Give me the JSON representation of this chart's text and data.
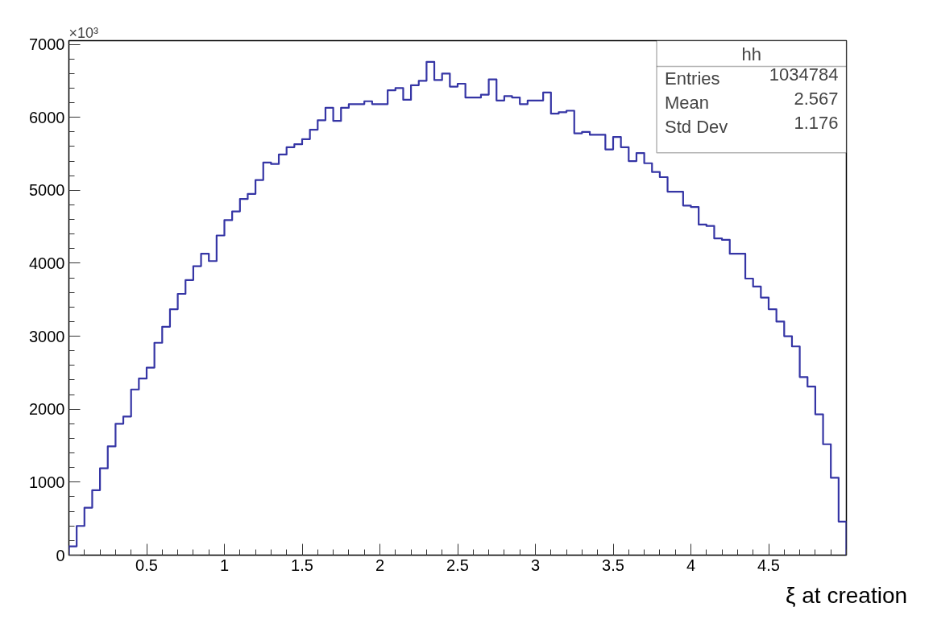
{
  "chart_data": {
    "type": "histogram",
    "xlabel": "ξ at creation",
    "bins": [
      0,
      0.05,
      0.1,
      0.15,
      0.2,
      0.25,
      0.3,
      0.35,
      0.4,
      0.45,
      0.5,
      0.55,
      0.6,
      0.65,
      0.7,
      0.75,
      0.8,
      0.85,
      0.9,
      0.95,
      1,
      1.05,
      1.1,
      1.15,
      1.2,
      1.25,
      1.3,
      1.35,
      1.4,
      1.45,
      1.5,
      1.55,
      1.6,
      1.65,
      1.7,
      1.75,
      1.8,
      1.85,
      1.9,
      1.95,
      2,
      2.05,
      2.1,
      2.15,
      2.2,
      2.25,
      2.3,
      2.35,
      2.4,
      2.45,
      2.5,
      2.55,
      2.6,
      2.65,
      2.7,
      2.75,
      2.8,
      2.85,
      2.9,
      2.95,
      3,
      3.05,
      3.1,
      3.15,
      3.2,
      3.25,
      3.3,
      3.35,
      3.4,
      3.45,
      3.5,
      3.55,
      3.6,
      3.65,
      3.7,
      3.75,
      3.8,
      3.85,
      3.9,
      3.95,
      4,
      4.05,
      4.1,
      4.15,
      4.2,
      4.25,
      4.3,
      4.35,
      4.4,
      4.45,
      4.5,
      4.55,
      4.6,
      4.65,
      4.7,
      4.75,
      4.8,
      4.85,
      4.9,
      4.95,
      5
    ],
    "values": [
      120,
      400,
      650,
      890,
      1190,
      1490,
      1800,
      1900,
      2270,
      2420,
      2570,
      2910,
      3130,
      3370,
      3580,
      3770,
      3960,
      4130,
      4030,
      4380,
      4590,
      4710,
      4880,
      4950,
      5140,
      5380,
      5360,
      5490,
      5590,
      5630,
      5700,
      5830,
      5960,
      6130,
      5950,
      6130,
      6180,
      6180,
      6220,
      6180,
      6180,
      6370,
      6400,
      6240,
      6440,
      6500,
      6760,
      6510,
      6600,
      6420,
      6460,
      6270,
      6270,
      6310,
      6520,
      6230,
      6290,
      6270,
      6180,
      6230,
      6230,
      6340,
      6050,
      6070,
      6090,
      5780,
      5800,
      5760,
      5760,
      5560,
      5730,
      5590,
      5400,
      5510,
      5370,
      5250,
      5180,
      4980,
      4980,
      4790,
      4770,
      4530,
      4510,
      4340,
      4320,
      4130,
      4130,
      3790,
      3680,
      3530,
      3370,
      3200,
      3000,
      2860,
      2440,
      2310,
      1930,
      1520,
      1060,
      460
    ],
    "color": "#3535a5",
    "xlim": [
      0,
      5
    ],
    "ylim": [
      0,
      7050
    ],
    "xticks": [
      0.5,
      1,
      1.5,
      2,
      2.5,
      3,
      3.5,
      4,
      4.5
    ],
    "yticks": [
      0,
      1000,
      2000,
      3000,
      4000,
      5000,
      6000,
      7000
    ],
    "grid": false,
    "annotations": [
      "×10³",
      "hh",
      "Entries",
      "1034784",
      "Mean",
      "2.567",
      "Std Dev",
      "1.176"
    ]
  }
}
